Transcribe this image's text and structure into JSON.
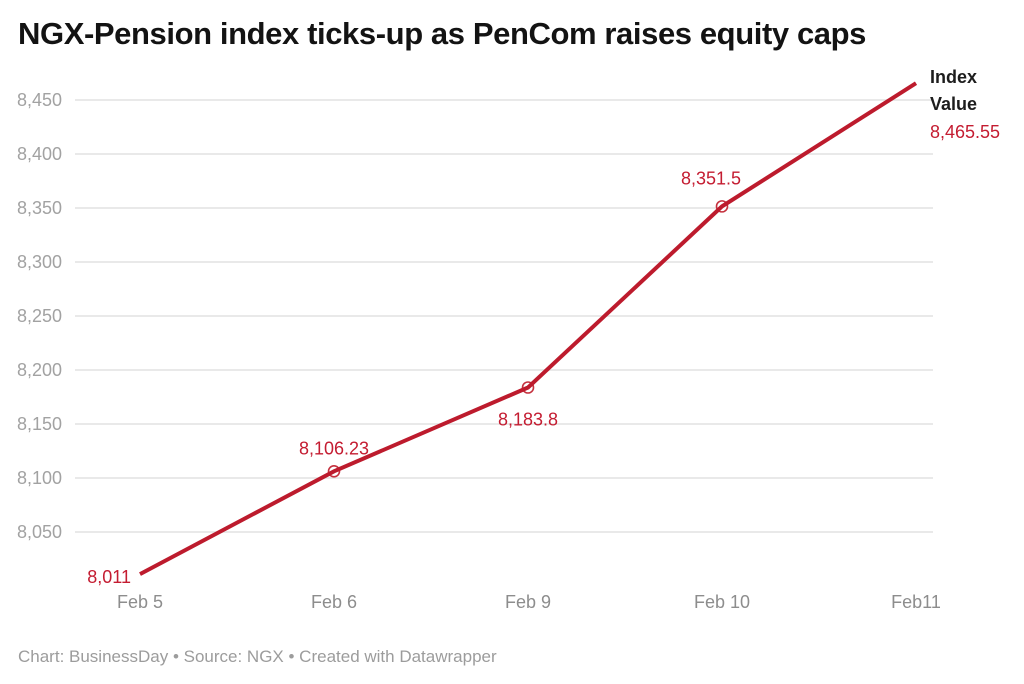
{
  "header": {
    "title": "NGX-Pension index ticks-up as PenCom raises equity caps"
  },
  "chart_data": {
    "type": "line",
    "title": "NGX-Pension index ticks-up as PenCom raises equity caps",
    "categories": [
      "Feb 5",
      "Feb 6",
      "Feb 9",
      "Feb 10",
      "Feb11"
    ],
    "series": [
      {
        "name": "Index Value",
        "values": [
          8011,
          8106.23,
          8183.8,
          8351.5,
          8465.55
        ]
      }
    ],
    "point_labels": [
      "8,011",
      "8,106.23",
      "8,183.8",
      "8,351.5",
      "8,465.55"
    ],
    "markers": [
      false,
      true,
      true,
      true,
      false
    ],
    "y_ticks": [
      {
        "value": 8450,
        "label": "8,450"
      },
      {
        "value": 8400,
        "label": "8,400"
      },
      {
        "value": 8350,
        "label": "8,350"
      },
      {
        "value": 8300,
        "label": "8,300"
      },
      {
        "value": 8250,
        "label": "8,250"
      },
      {
        "value": 8200,
        "label": "8,200"
      },
      {
        "value": 8150,
        "label": "8,150"
      },
      {
        "value": 8100,
        "label": "8,100"
      },
      {
        "value": 8050,
        "label": "8,050"
      }
    ],
    "xlabel": "",
    "ylabel": "",
    "ylim": [
      8000,
      8480
    ],
    "grid": "horizontal",
    "legend_position": "end-of-line",
    "colors": {
      "line": "#bd1b2d",
      "marker_stroke": "#c5323f",
      "point_label": "#c41c31",
      "grid": "#e6e6e6",
      "axis_text_y": "#a2a2a2",
      "axis_text_x": "#8d8d8d"
    }
  },
  "annotation": {
    "line1": "Index",
    "line2": "Value",
    "value": "8,465.55"
  },
  "footer": {
    "text": "Chart: BusinessDay • Source: NGX  • Created with Datawrapper"
  }
}
